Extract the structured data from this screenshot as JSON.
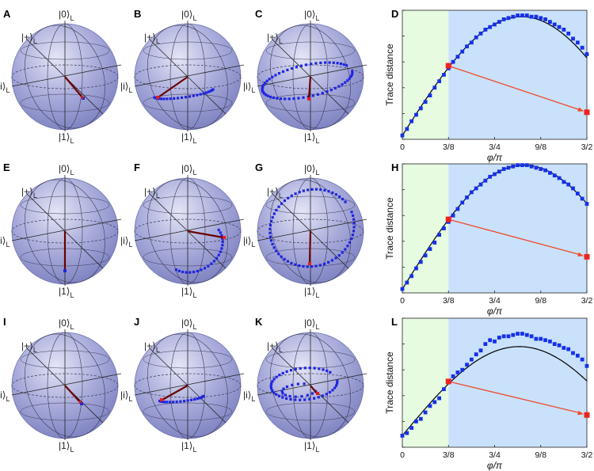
{
  "panels": {
    "labels": [
      "A",
      "B",
      "C",
      "D",
      "E",
      "F",
      "G",
      "H",
      "I",
      "J",
      "K",
      "L"
    ]
  },
  "bloch": {
    "ket_zero": "|0⟩",
    "ket_one": "|1⟩",
    "ket_plus": "|+⟩",
    "ket_i": "|i⟩",
    "ket_subscript": "L",
    "sphere_fill": "#a6a9d9",
    "trajectory_color": "#1f25e0",
    "final_state_color": "#e11f1f",
    "arrow_color": "#6b0000"
  },
  "colors": {
    "region_left": "#e6fbe0",
    "region_right": "#c9e1fb",
    "markers": "#1530e8",
    "fit_line": "#000000",
    "highlight": "#ee2222",
    "highlight_arrow": "#f04a2a"
  },
  "chart_data": [
    {
      "panel": "D",
      "type": "scatter",
      "xlabel": "φ/π",
      "ylabel": "Trace distance",
      "xlim": [
        0,
        1.5
      ],
      "ylim": [
        0,
        1.0
      ],
      "xticks": [
        0,
        0.375,
        0.75,
        1.125,
        1.5
      ],
      "xtick_labels": [
        "0",
        "3/8",
        "3/4",
        "9/8",
        "3/2"
      ],
      "yticks": [
        0,
        0.2,
        0.4,
        0.6,
        0.8,
        1.0
      ],
      "ytick_labels": [
        "0",
        "0.2",
        "0.4",
        "0.6",
        "0.8",
        "1"
      ],
      "shaded_regions": [
        [
          0,
          0.375
        ],
        [
          0.375,
          1.5
        ]
      ],
      "x": [
        0.0,
        0.0375,
        0.075,
        0.1125,
        0.15,
        0.1875,
        0.225,
        0.2625,
        0.3,
        0.3375,
        0.375,
        0.4125,
        0.45,
        0.4875,
        0.525,
        0.5625,
        0.6,
        0.6375,
        0.675,
        0.7125,
        0.75,
        0.7875,
        0.825,
        0.8625,
        0.9,
        0.9375,
        0.975,
        1.0125,
        1.05,
        1.0875,
        1.125,
        1.1625,
        1.2,
        1.2375,
        1.275,
        1.3125,
        1.35,
        1.3875,
        1.425,
        1.4625,
        1.5
      ],
      "y": [
        0.03,
        0.08,
        0.14,
        0.19,
        0.24,
        0.29,
        0.34,
        0.4,
        0.45,
        0.5,
        0.55,
        0.6,
        0.64,
        0.68,
        0.72,
        0.75,
        0.79,
        0.82,
        0.85,
        0.87,
        0.89,
        0.91,
        0.93,
        0.94,
        0.95,
        0.96,
        0.96,
        0.96,
        0.95,
        0.95,
        0.94,
        0.93,
        0.91,
        0.89,
        0.87,
        0.85,
        0.82,
        0.78,
        0.75,
        0.71,
        0.66
      ],
      "fit": {
        "amplitude": 0.95,
        "peak_x": 0.97,
        "y0": 0.03
      },
      "highlight_points": [
        {
          "x": 0.375,
          "y": 0.57
        },
        {
          "x": 1.5,
          "y": 0.21
        }
      ]
    },
    {
      "panel": "H",
      "type": "scatter",
      "xlabel": "φ/π",
      "ylabel": "Trace distance",
      "xlim": [
        0,
        1.5
      ],
      "ylim": [
        0,
        1.0
      ],
      "xticks": [
        0,
        0.375,
        0.75,
        1.125,
        1.5
      ],
      "xtick_labels": [
        "0",
        "3/8",
        "3/4",
        "9/8",
        "3/2"
      ],
      "yticks": [
        0,
        0.2,
        0.4,
        0.6,
        0.8,
        1.0
      ],
      "ytick_labels": [
        "0",
        "0.2",
        "0.4",
        "0.6",
        "0.8",
        "1"
      ],
      "shaded_regions": [
        [
          0,
          0.375
        ],
        [
          0.375,
          1.5
        ]
      ],
      "x": [
        0.0,
        0.0375,
        0.075,
        0.1125,
        0.15,
        0.1875,
        0.225,
        0.2625,
        0.3,
        0.3375,
        0.375,
        0.4125,
        0.45,
        0.4875,
        0.525,
        0.5625,
        0.6,
        0.6375,
        0.675,
        0.7125,
        0.75,
        0.7875,
        0.825,
        0.8625,
        0.9,
        0.9375,
        0.975,
        1.0125,
        1.05,
        1.0875,
        1.125,
        1.1625,
        1.2,
        1.2375,
        1.275,
        1.3125,
        1.35,
        1.3875,
        1.425,
        1.4625,
        1.5
      ],
      "y": [
        0.03,
        0.08,
        0.13,
        0.19,
        0.24,
        0.29,
        0.34,
        0.39,
        0.45,
        0.5,
        0.55,
        0.6,
        0.65,
        0.7,
        0.74,
        0.78,
        0.81,
        0.84,
        0.87,
        0.9,
        0.92,
        0.94,
        0.96,
        0.97,
        0.98,
        0.99,
        0.99,
        0.99,
        0.98,
        0.97,
        0.96,
        0.95,
        0.93,
        0.91,
        0.89,
        0.86,
        0.84,
        0.81,
        0.77,
        0.73,
        0.69
      ],
      "fit": {
        "amplitude": 0.99,
        "peak_x": 0.99,
        "y0": 0.03
      },
      "highlight_points": [
        {
          "x": 0.375,
          "y": 0.57
        },
        {
          "x": 1.5,
          "y": 0.28
        }
      ]
    },
    {
      "panel": "L",
      "type": "scatter",
      "xlabel": "φ/π",
      "ylabel": "Trace distance",
      "xlim": [
        0,
        1.5
      ],
      "ylim": [
        0,
        1.0
      ],
      "xticks": [
        0,
        0.375,
        0.75,
        1.125,
        1.5
      ],
      "xtick_labels": [
        "0",
        "3/8",
        "3/4",
        "9/8",
        "3/2"
      ],
      "yticks": [
        0,
        0.2,
        0.4,
        0.6,
        0.8,
        1.0
      ],
      "ytick_labels": [
        "0",
        "0.2",
        "0.4",
        "0.6",
        "0.8",
        "1"
      ],
      "shaded_regions": [
        [
          0,
          0.375
        ],
        [
          0.375,
          1.5
        ]
      ],
      "x": [
        0.0,
        0.0375,
        0.075,
        0.1125,
        0.15,
        0.1875,
        0.225,
        0.2625,
        0.3,
        0.3375,
        0.375,
        0.4125,
        0.45,
        0.4875,
        0.525,
        0.5625,
        0.6,
        0.6375,
        0.675,
        0.7125,
        0.75,
        0.7875,
        0.825,
        0.8625,
        0.9,
        0.9375,
        0.975,
        1.0125,
        1.05,
        1.0875,
        1.125,
        1.1625,
        1.2,
        1.2375,
        1.275,
        1.3125,
        1.35,
        1.3875,
        1.425,
        1.4625,
        1.5
      ],
      "y": [
        0.09,
        0.11,
        0.15,
        0.2,
        0.22,
        0.27,
        0.32,
        0.35,
        0.38,
        0.45,
        0.51,
        0.55,
        0.58,
        0.6,
        0.64,
        0.68,
        0.72,
        0.75,
        0.8,
        0.83,
        0.82,
        0.85,
        0.86,
        0.86,
        0.87,
        0.88,
        0.88,
        0.87,
        0.86,
        0.84,
        0.84,
        0.83,
        0.82,
        0.8,
        0.79,
        0.77,
        0.76,
        0.73,
        0.71,
        0.68,
        0.63
      ],
      "fit": {
        "amplitude": 0.78,
        "peak_x": 0.95,
        "y0": 0.09
      },
      "highlight_points": [
        {
          "x": 0.375,
          "y": 0.51
        },
        {
          "x": 1.5,
          "y": 0.25
        }
      ]
    }
  ]
}
